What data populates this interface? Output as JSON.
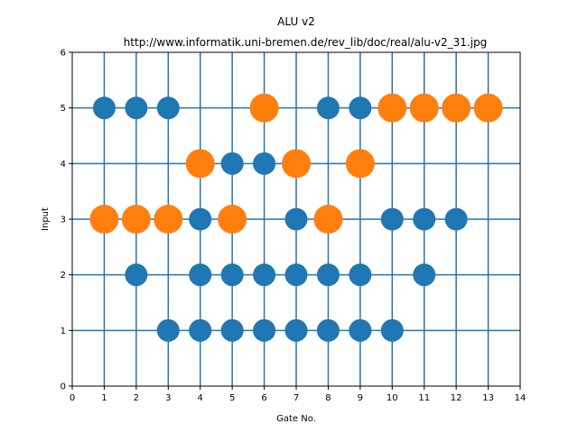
{
  "chart_data": {
    "type": "scatter",
    "title": "ALU v2",
    "subtitle": "http://www.informatik.uni-bremen.de/rev_lib/doc/real/alu-v2_31.jpg",
    "xlabel": "Gate No.",
    "ylabel": "Input",
    "xlim": [
      0,
      14
    ],
    "ylim": [
      0,
      6
    ],
    "xticks": [
      "0",
      "1",
      "2",
      "3",
      "4",
      "5",
      "6",
      "7",
      "8",
      "9",
      "10",
      "11",
      "12",
      "13",
      "14"
    ],
    "yticks": [
      "0",
      "1",
      "2",
      "3",
      "4",
      "5",
      "6"
    ],
    "grid": "vertical lines at gates 1-13, horizontal lines at inputs 1-5",
    "colors": {
      "control": "#1f77b4",
      "target": "#ff7f0e",
      "line": "#1f77b4"
    },
    "gate_lines": [
      1,
      2,
      3,
      4,
      5,
      6,
      7,
      8,
      9,
      10,
      11,
      12,
      13
    ],
    "input_lines": [
      1,
      2,
      3,
      4,
      5
    ],
    "series": [
      {
        "points": [
          [
            1,
            5
          ],
          [
            2,
            5
          ],
          [
            3,
            5
          ],
          [
            8,
            5
          ],
          [
            9,
            5
          ],
          [
            5,
            4
          ],
          [
            6,
            4
          ],
          [
            4,
            3
          ],
          [
            7,
            3
          ],
          [
            10,
            3
          ],
          [
            11,
            3
          ],
          [
            12,
            3
          ],
          [
            2,
            2
          ],
          [
            4,
            2
          ],
          [
            5,
            2
          ],
          [
            6,
            2
          ],
          [
            7,
            2
          ],
          [
            8,
            2
          ],
          [
            9,
            2
          ],
          [
            11,
            2
          ],
          [
            3,
            1
          ],
          [
            4,
            1
          ],
          [
            5,
            1
          ],
          [
            6,
            1
          ],
          [
            7,
            1
          ],
          [
            8,
            1
          ],
          [
            9,
            1
          ],
          [
            10,
            1
          ]
        ],
        "color": "#1f77b4",
        "size": "small"
      },
      {
        "points": [
          [
            6,
            5
          ],
          [
            10,
            5
          ],
          [
            11,
            5
          ],
          [
            12,
            5
          ],
          [
            13,
            5
          ],
          [
            4,
            4
          ],
          [
            7,
            4
          ],
          [
            9,
            4
          ],
          [
            1,
            3
          ],
          [
            2,
            3
          ],
          [
            3,
            3
          ],
          [
            5,
            3
          ],
          [
            8,
            3
          ]
        ],
        "color": "#ff7f0e",
        "size": "large"
      }
    ]
  }
}
